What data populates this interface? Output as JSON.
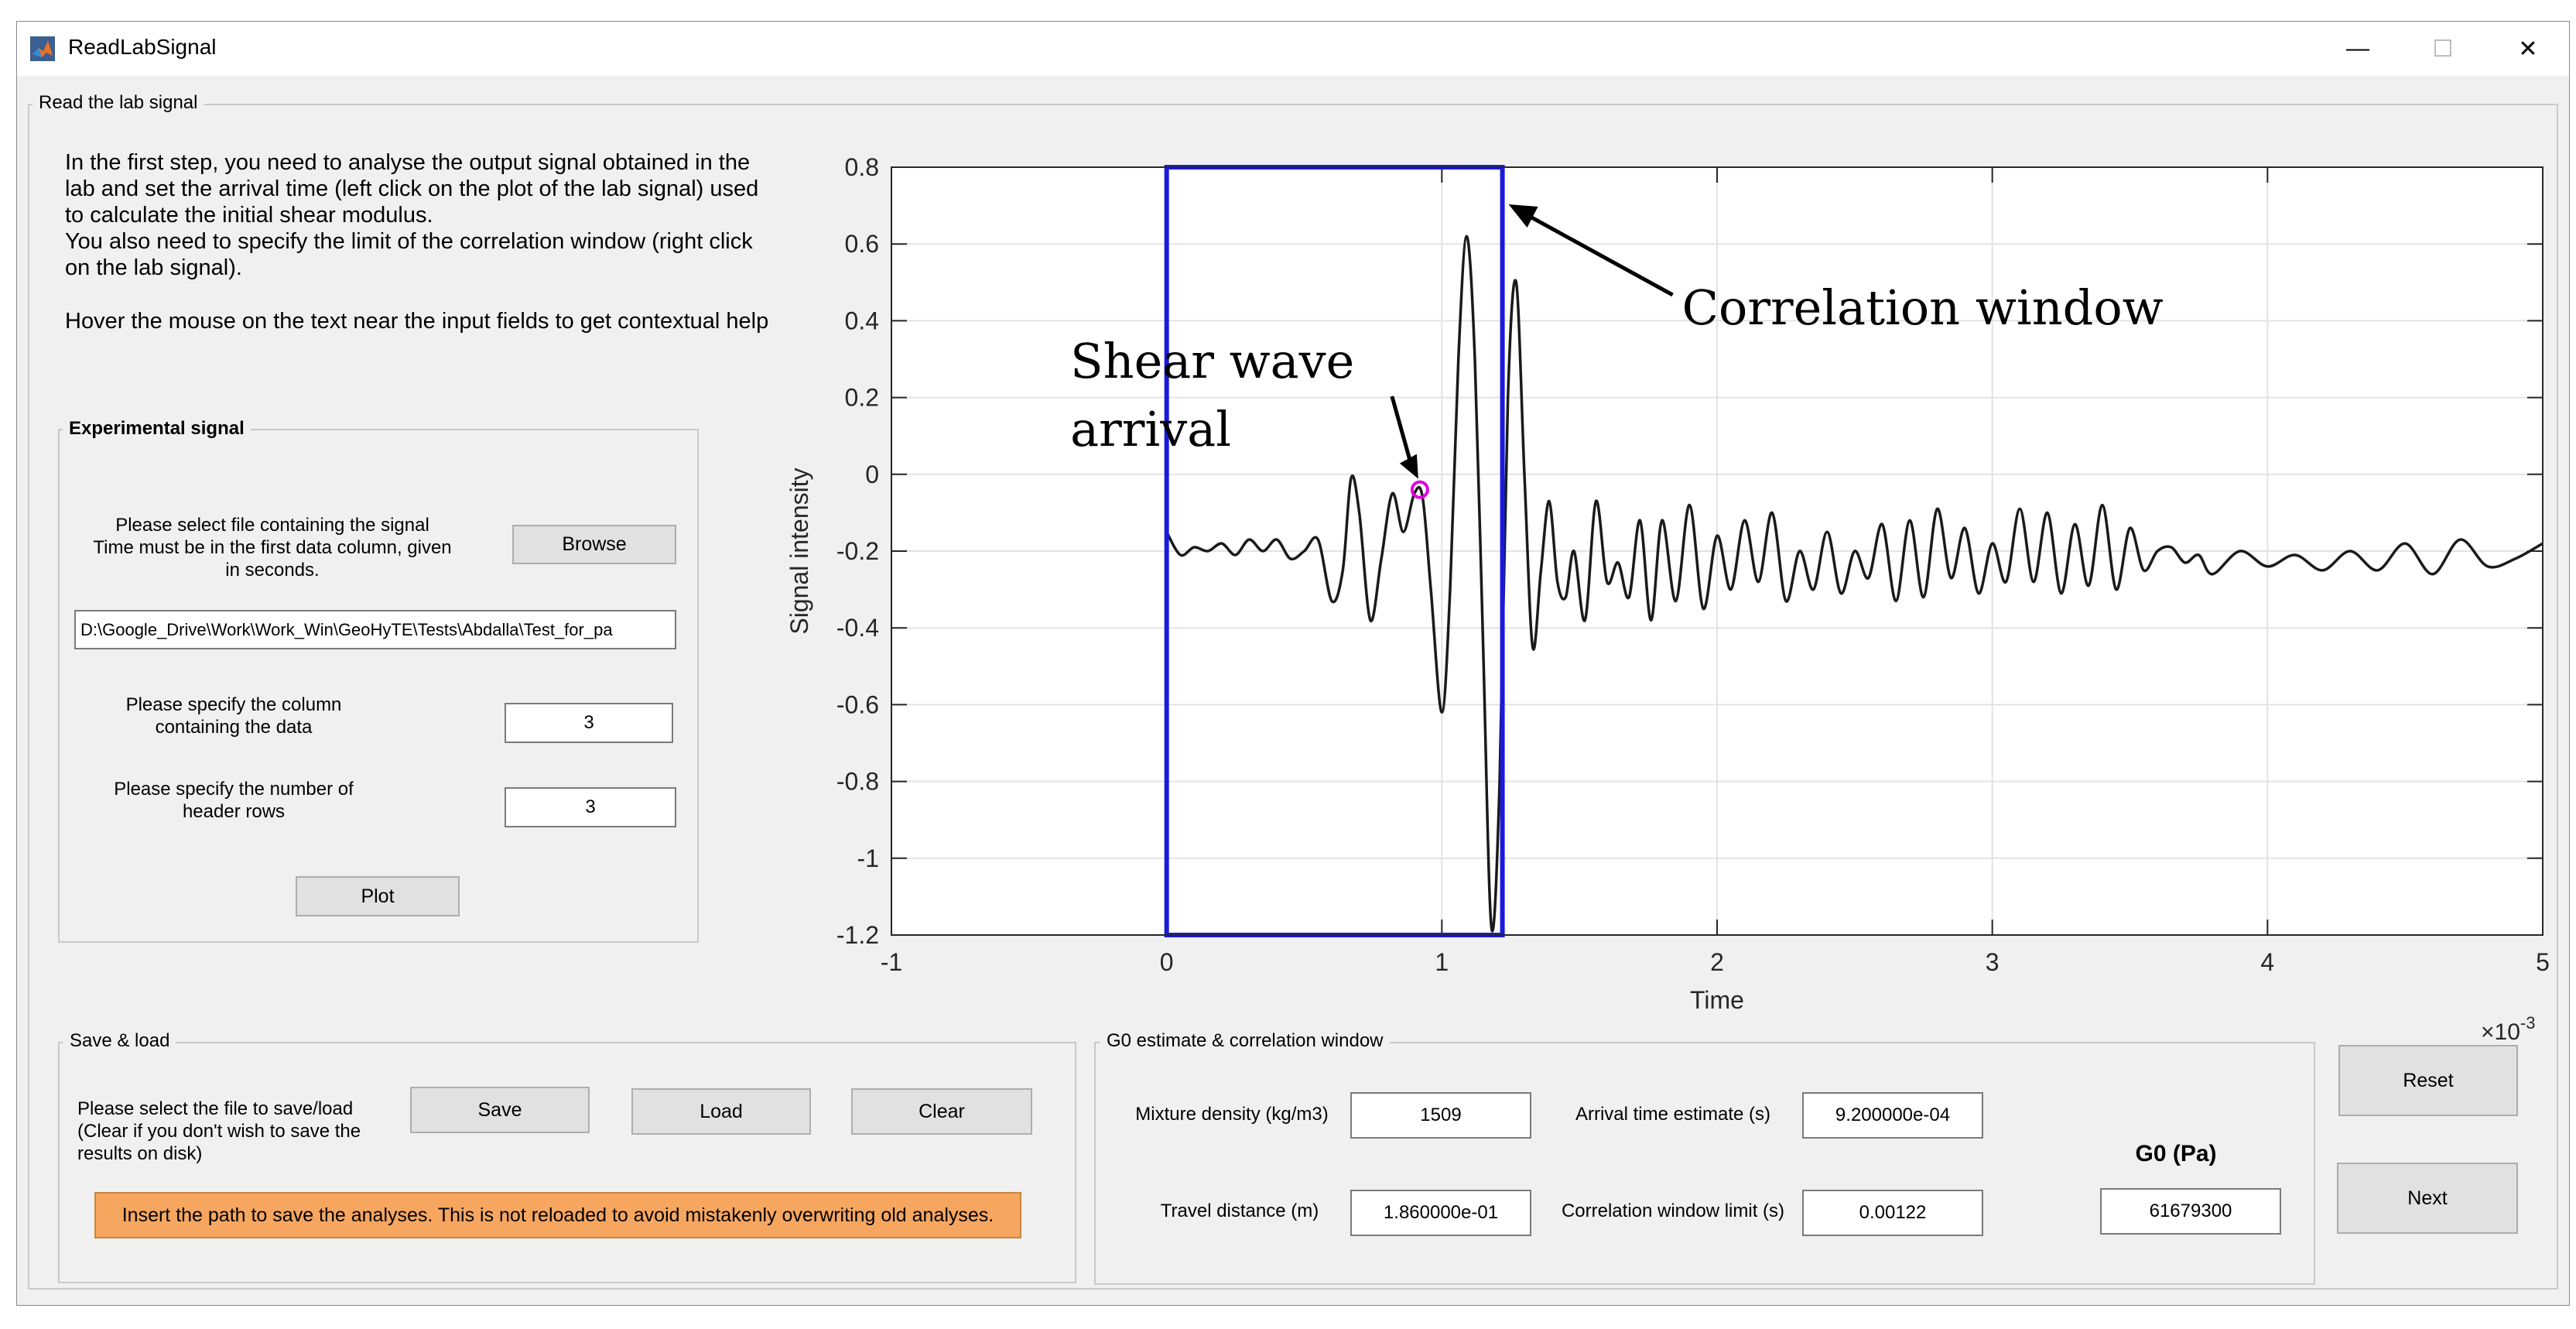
{
  "window": {
    "title": "ReadLabSignal",
    "minimize": "—",
    "maximize": "☐",
    "close": "✕"
  },
  "read_panel": {
    "title": "Read the lab signal",
    "intro_lines": [
      "In the first step, you need to analyse the output signal obtained in the",
      "lab and set the arrival time (left click on the plot of the lab signal) used",
      "to calculate the initial shear modulus.",
      "You also need to specify the limit of the correlation window (right click",
      "on the lab signal)."
    ],
    "hover_hint": "Hover the mouse on the text near the input fields to get contextual help"
  },
  "experimental": {
    "title": "Experimental signal",
    "select_label_lines": [
      "Please select file containing the signal",
      "Time must be in the first data column, given",
      "in seconds."
    ],
    "browse_label": "Browse",
    "file_path": "D:\\Google_Drive\\Work\\Work_Win\\GeoHyTE\\Tests\\Abdalla\\Test_for_pa",
    "column_label_lines": [
      "Please specify the column",
      "containing the data"
    ],
    "column_value": "3",
    "header_label_lines": [
      "Please specify the number of",
      "header rows"
    ],
    "header_value": "3",
    "plot_label": "Plot"
  },
  "save_load": {
    "title": "Save & load",
    "desc_lines": [
      "Please select the file to save/load",
      "(Clear if you don't wish to save the",
      "results on disk)"
    ],
    "save_label": "Save",
    "load_label": "Load",
    "clear_label": "Clear",
    "banner": "Insert the path to save the analyses. This is not reloaded to avoid mistakenly overwriting old analyses."
  },
  "g0": {
    "title": "G0 estimate & correlation window",
    "density_label": "Mixture density (kg/m3)",
    "density_value": "1509",
    "arrival_label": "Arrival time estimate (s)",
    "arrival_value": "9.200000e-04",
    "distance_label": "Travel distance (m)",
    "distance_value": "1.860000e-01",
    "corr_label": "Correlation window limit (s)",
    "corr_value": "0.00122",
    "g0_heading": "G0 (Pa)",
    "g0_value": "61679300"
  },
  "actions": {
    "reset_label": "Reset",
    "next_label": "Next"
  },
  "colors": {
    "window_bg": "#f0f0f0",
    "banner": "#f7a660",
    "corr_box": "#1a1adb",
    "marker": "#e000e0",
    "signal": "#1a1a1a"
  },
  "chart_data": {
    "type": "line",
    "xlabel": "Time",
    "ylabel": "Signal intensity",
    "x_multiplier": "×10",
    "x_multiplier_exp": "-3",
    "xlim": [
      -1,
      5
    ],
    "ylim": [
      -1.2,
      0.8
    ],
    "xticks": [
      -1,
      0,
      1,
      2,
      3,
      4,
      5
    ],
    "xtick_labels": [
      "-1",
      "0",
      "1",
      "2",
      "3",
      "4",
      "5"
    ],
    "yticks": [
      0.8,
      0.6,
      0.4,
      0.2,
      0,
      -0.2,
      -0.4,
      -0.6,
      -0.8,
      -1,
      -1.2
    ],
    "ytick_labels": [
      "0.8",
      "0.6",
      "0.4",
      "0.2",
      "0",
      "-0.2",
      "-0.4",
      "-0.6",
      "-0.8",
      "-1",
      "-1.2"
    ],
    "grid": true,
    "series": [
      {
        "x": [
          0.0,
          0.05,
          0.1,
          0.15,
          0.2,
          0.25,
          0.3,
          0.35,
          0.4,
          0.45,
          0.5,
          0.55,
          0.6,
          0.64,
          0.67,
          0.7,
          0.74,
          0.78,
          0.82,
          0.86,
          0.9,
          0.93,
          0.96,
          1.0,
          1.03,
          1.06,
          1.09,
          1.12,
          1.15,
          1.18,
          1.21,
          1.24,
          1.27,
          1.3,
          1.33,
          1.36,
          1.39,
          1.42,
          1.45,
          1.48,
          1.52,
          1.56,
          1.6,
          1.64,
          1.68,
          1.72,
          1.76,
          1.8,
          1.85,
          1.9,
          1.95,
          2.0,
          2.05,
          2.1,
          2.15,
          2.2,
          2.25,
          2.3,
          2.35,
          2.4,
          2.45,
          2.5,
          2.55,
          2.6,
          2.65,
          2.7,
          2.75,
          2.8,
          2.85,
          2.9,
          2.95,
          3.0,
          3.05,
          3.1,
          3.15,
          3.2,
          3.25,
          3.3,
          3.35,
          3.4,
          3.45,
          3.5,
          3.55,
          3.6,
          3.65,
          3.7,
          3.75,
          3.8,
          3.9,
          4.0,
          4.1,
          4.2,
          4.3,
          4.4,
          4.5,
          4.6,
          4.7,
          4.8,
          4.9,
          5.0
        ],
        "y": [
          -0.15,
          -0.21,
          -0.19,
          -0.2,
          -0.18,
          -0.21,
          -0.17,
          -0.2,
          -0.17,
          -0.22,
          -0.2,
          -0.17,
          -0.33,
          -0.25,
          -0.01,
          -0.1,
          -0.38,
          -0.22,
          -0.05,
          -0.15,
          -0.05,
          -0.06,
          -0.3,
          -0.62,
          -0.3,
          0.3,
          0.62,
          0.3,
          -0.45,
          -1.18,
          -0.8,
          0.2,
          0.5,
          0.0,
          -0.45,
          -0.25,
          -0.07,
          -0.28,
          -0.32,
          -0.2,
          -0.38,
          -0.07,
          -0.28,
          -0.23,
          -0.32,
          -0.12,
          -0.38,
          -0.12,
          -0.33,
          -0.08,
          -0.35,
          -0.16,
          -0.3,
          -0.12,
          -0.28,
          -0.1,
          -0.33,
          -0.2,
          -0.3,
          -0.15,
          -0.31,
          -0.2,
          -0.27,
          -0.13,
          -0.33,
          -0.12,
          -0.32,
          -0.09,
          -0.27,
          -0.14,
          -0.31,
          -0.18,
          -0.28,
          -0.09,
          -0.28,
          -0.1,
          -0.31,
          -0.13,
          -0.29,
          -0.08,
          -0.3,
          -0.14,
          -0.25,
          -0.2,
          -0.19,
          -0.23,
          -0.21,
          -0.26,
          -0.2,
          -0.24,
          -0.21,
          -0.25,
          -0.2,
          -0.25,
          -0.18,
          -0.26,
          -0.17,
          -0.24,
          -0.22,
          -0.18
        ]
      }
    ],
    "correlation_window": {
      "x0": 0,
      "x1": 1.22,
      "label": "Correlation window"
    },
    "arrival_marker": {
      "x": 0.92,
      "y": -0.04,
      "label_lines": [
        "Shear wave",
        "arrival"
      ]
    }
  }
}
